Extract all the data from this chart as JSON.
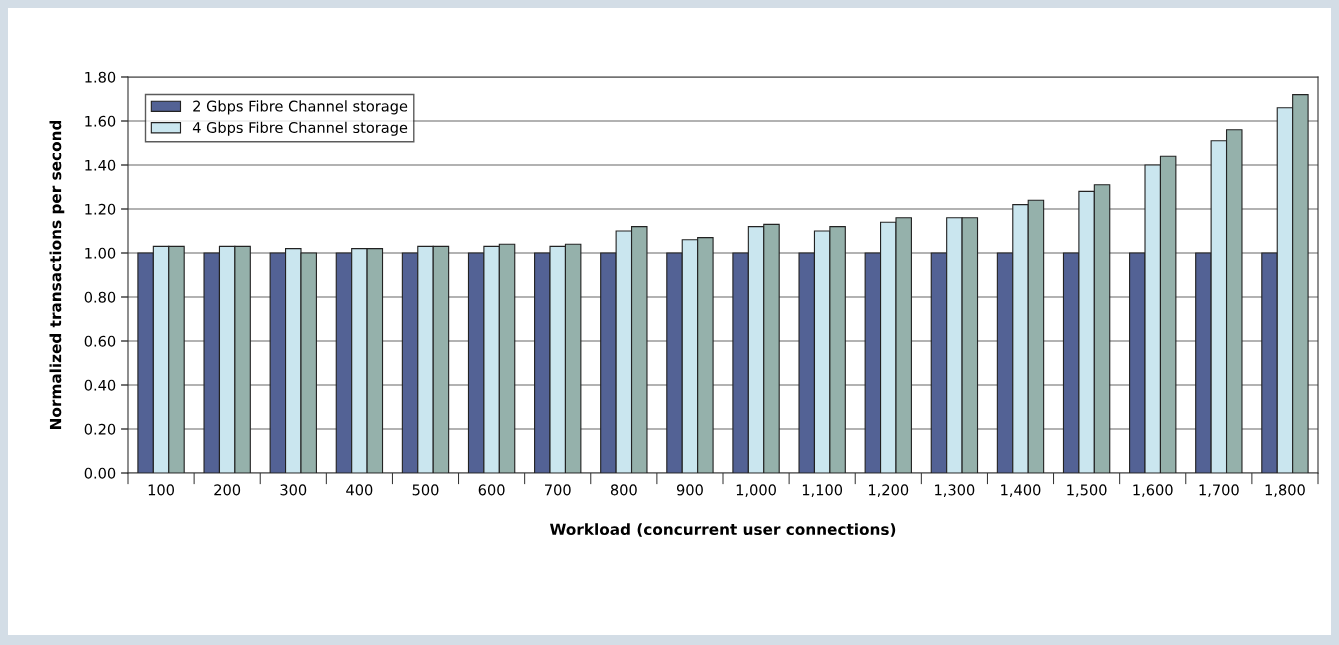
{
  "chart_data": {
    "type": "bar",
    "xlabel": "Workload (concurrent user connections)",
    "ylabel": "Normalized transactions per second",
    "categories": [
      "100",
      "200",
      "300",
      "400",
      "500",
      "600",
      "700",
      "800",
      "900",
      "1,000",
      "1,100",
      "1,200",
      "1,300",
      "1,400",
      "1,500",
      "1,600",
      "1,700",
      "1,800"
    ],
    "series": [
      {
        "name": "2 Gbps Fibre Channel storage",
        "color": "#536295",
        "values": [
          1.0,
          1.0,
          1.0,
          1.0,
          1.0,
          1.0,
          1.0,
          1.0,
          1.0,
          1.0,
          1.0,
          1.0,
          1.0,
          1.0,
          1.0,
          1.0,
          1.0,
          1.0
        ]
      },
      {
        "name": "4 Gbps Fibre Channel storage",
        "color": "#cae6ef",
        "values": [
          1.03,
          1.03,
          1.02,
          1.02,
          1.03,
          1.03,
          1.03,
          1.1,
          1.06,
          1.12,
          1.1,
          1.14,
          1.16,
          1.22,
          1.28,
          1.4,
          1.51,
          1.66
        ]
      },
      {
        "color": "#95b1ab",
        "values": [
          1.03,
          1.03,
          1.0,
          1.02,
          1.03,
          1.04,
          1.04,
          1.12,
          1.07,
          1.13,
          1.12,
          1.16,
          1.16,
          1.24,
          1.31,
          1.44,
          1.56,
          1.72
        ]
      }
    ],
    "ylim": [
      0,
      1.8
    ],
    "yticks": [
      {
        "value": 0,
        "label": "0.00"
      },
      {
        "value": 0.2,
        "label": "0.20"
      },
      {
        "value": 0.4,
        "label": "0.40"
      },
      {
        "value": 0.6,
        "label": "0.60"
      },
      {
        "value": 0.8,
        "label": "0.80"
      },
      {
        "value": 1.0,
        "label": "1.00"
      },
      {
        "value": 1.2,
        "label": "1.20"
      },
      {
        "value": 1.4,
        "label": "1.40"
      },
      {
        "value": 1.6,
        "label": "1.60"
      },
      {
        "value": 1.8,
        "label": "1.80"
      }
    ],
    "grid": "y",
    "legend": "top left"
  }
}
